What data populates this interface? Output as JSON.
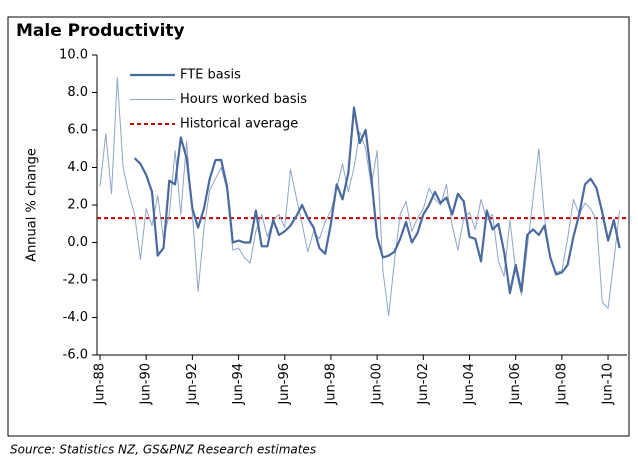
{
  "chart_data": {
    "type": "line",
    "title": "Male Productivity",
    "y_label": "Annual % change",
    "source": "Source: Statistics NZ, GS&PNZ Research estimates",
    "categories": [
      "Jun-88",
      null,
      null,
      null,
      null,
      null,
      null,
      null,
      "Jun-90",
      null,
      null,
      null,
      null,
      null,
      null,
      null,
      "Jun-92",
      null,
      null,
      null,
      null,
      null,
      null,
      null,
      "Jun-94",
      null,
      null,
      null,
      null,
      null,
      null,
      null,
      "Jun-96",
      null,
      null,
      null,
      null,
      null,
      null,
      null,
      "Jun-98",
      null,
      null,
      null,
      null,
      null,
      null,
      null,
      "Jun-00",
      null,
      null,
      null,
      null,
      null,
      null,
      null,
      "Jun-02",
      null,
      null,
      null,
      null,
      null,
      null,
      null,
      "Jun-04",
      null,
      null,
      null,
      null,
      null,
      null,
      null,
      "Jun-06",
      null,
      null,
      null,
      null,
      null,
      null,
      null,
      "Jun-08",
      null,
      null,
      null,
      null,
      null,
      null,
      null,
      "Jun-10",
      null,
      null
    ],
    "series": [
      {
        "name": "FTE basis",
        "color": "#4a6a9f",
        "width": 2.2,
        "values": [
          null,
          null,
          null,
          null,
          null,
          null,
          4.5,
          4.2,
          3.6,
          2.7,
          -0.7,
          -0.3,
          3.3,
          3.1,
          5.6,
          4.5,
          1.8,
          0.8,
          1.8,
          3.4,
          4.4,
          4.4,
          3.0,
          0.0,
          0.1,
          0.0,
          0.0,
          1.7,
          -0.2,
          -0.2,
          1.2,
          0.4,
          0.6,
          0.9,
          1.4,
          2.0,
          1.3,
          0.8,
          -0.3,
          -0.6,
          1.0,
          3.1,
          2.3,
          3.7,
          7.2,
          5.3,
          6.0,
          3.5,
          0.3,
          -0.8,
          -0.7,
          -0.5,
          0.2,
          1.1,
          0.0,
          0.5,
          1.5,
          2.0,
          2.7,
          2.1,
          2.4,
          1.5,
          2.6,
          2.2,
          0.3,
          0.2,
          -1.0,
          1.7,
          0.7,
          1.0,
          -0.5,
          -2.7,
          -1.2,
          -2.6,
          0.4,
          0.7,
          0.4,
          0.9,
          -0.8,
          -1.7,
          -1.6,
          -1.2,
          0.3,
          1.5,
          3.1,
          3.4,
          2.9,
          1.6,
          0.1,
          1.2,
          -0.3
        ]
      },
      {
        "name": "Hours worked basis",
        "color": "#8fa5c8",
        "width": 1,
        "values": [
          3.0,
          5.8,
          2.6,
          8.8,
          4.0,
          2.6,
          1.5,
          -0.9,
          1.8,
          0.9,
          2.5,
          0.2,
          1.5,
          4.9,
          1.5,
          5.4,
          1.5,
          -2.6,
          0.7,
          2.8,
          3.4,
          4.0,
          2.8,
          -0.4,
          -0.3,
          -0.8,
          -1.1,
          0.6,
          1.5,
          0.3,
          1.2,
          1.5,
          0.8,
          3.9,
          2.4,
          1.0,
          -0.5,
          0.6,
          0.2,
          1.1,
          1.7,
          2.9,
          4.2,
          2.7,
          4.0,
          5.9,
          5.0,
          3.0,
          4.9,
          -1.5,
          -3.9,
          -1.0,
          1.5,
          2.2,
          0.6,
          1.3,
          1.8,
          2.9,
          2.3,
          2.0,
          3.1,
          0.9,
          -0.4,
          1.3,
          1.6,
          0.7,
          2.3,
          1.2,
          1.5,
          -1.0,
          -1.8,
          1.2,
          -1.5,
          -2.8,
          -0.3,
          2.3,
          5.0,
          1.3,
          -0.8,
          -1.6,
          -1.5,
          0.2,
          2.3,
          1.5,
          2.1,
          1.8,
          1.2,
          -3.2,
          -3.5,
          -1.0,
          1.7
        ]
      }
    ],
    "average": {
      "name": "Historical average",
      "value": 1.3,
      "color": "#c00000"
    },
    "ylim": [
      -6,
      10
    ],
    "yticks": [
      {
        "value": -6,
        "label": "-6.0"
      },
      {
        "value": -4,
        "label": "-4.0"
      },
      {
        "value": -2,
        "label": "-2.0"
      },
      {
        "value": 0,
        "label": "0.0"
      },
      {
        "value": 2,
        "label": "2.0"
      },
      {
        "value": 4,
        "label": "4.0"
      },
      {
        "value": 6,
        "label": "6.0"
      },
      {
        "value": 8,
        "label": "8.0"
      },
      {
        "value": 10,
        "label": "10.0"
      }
    ],
    "legend": "top-left"
  }
}
